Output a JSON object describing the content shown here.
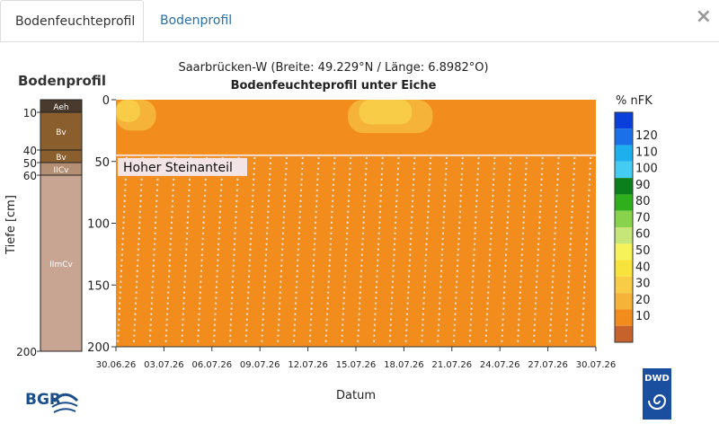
{
  "tabs": [
    {
      "label": "Bodenfeuchteprofil",
      "active": true
    },
    {
      "label": "Bodenprofil",
      "active": false
    }
  ],
  "close_label": "×",
  "profile": {
    "title": "Bodenprofil",
    "ylabel": "Tiefe [cm]",
    "ticks": [
      "10",
      "40",
      "50",
      "60",
      "200"
    ],
    "tick_depths": [
      10,
      40,
      50,
      60,
      200
    ],
    "layers": [
      {
        "name": "Aeh",
        "from": 0,
        "to": 10,
        "color": "#4a3a2e"
      },
      {
        "name": "Bv",
        "from": 10,
        "to": 40,
        "color": "#8b5e2e"
      },
      {
        "name": "Bv",
        "from": 40,
        "to": 50,
        "color": "#8b5e2e"
      },
      {
        "name": "IICv",
        "from": 50,
        "to": 60,
        "color": "#b58f73"
      },
      {
        "name": "IImCv",
        "from": 60,
        "to": 200,
        "color": "#c7a592"
      }
    ]
  },
  "chart_data": {
    "type": "heatmap",
    "title": "Saarbrücken-W (Breite: 49.229°N / Länge: 6.8982°O)",
    "subtitle": "Bodenfeuchteprofil unter Eiche",
    "xlabel": "Datum",
    "ylabel": "",
    "x_ticks": [
      "30.06.26",
      "03.07.26",
      "06.07.26",
      "09.07.26",
      "12.07.26",
      "15.07.26",
      "18.07.26",
      "21.07.26",
      "24.07.26",
      "27.07.26",
      "30.07.26"
    ],
    "x_range_days": [
      0,
      30
    ],
    "y_ticks": [
      0,
      50,
      100,
      150,
      200
    ],
    "ylim": [
      0,
      200
    ],
    "background_value_class": "10",
    "stone_zone": {
      "label": "Hoher Steinanteil",
      "from_depth": 45,
      "to_depth": 200
    },
    "patches": [
      {
        "day_from": 0,
        "day_to": 2.5,
        "depth_from": 0,
        "depth_to": 25,
        "class": "20"
      },
      {
        "day_from": 0,
        "day_to": 1.5,
        "depth_from": 0,
        "depth_to": 18,
        "class": "30"
      },
      {
        "day_from": 14.5,
        "day_to": 19.8,
        "depth_from": 0,
        "depth_to": 27,
        "class": "20"
      },
      {
        "day_from": 15.2,
        "day_to": 18.5,
        "depth_from": 0,
        "depth_to": 20,
        "class": "30"
      }
    ]
  },
  "legend": {
    "title": "% nFK",
    "classes": [
      {
        "label": "",
        "color": "#c8622d"
      },
      {
        "label": "10",
        "color": "#f28c1c"
      },
      {
        "label": "20",
        "color": "#f6b33a"
      },
      {
        "label": "30",
        "color": "#f8cc46"
      },
      {
        "label": "40",
        "color": "#f8e23c"
      },
      {
        "label": "50",
        "color": "#f5f25a"
      },
      {
        "label": "60",
        "color": "#c6e67a"
      },
      {
        "label": "70",
        "color": "#88d24c"
      },
      {
        "label": "80",
        "color": "#2faf1c"
      },
      {
        "label": "90",
        "color": "#0b7f1c"
      },
      {
        "label": "100",
        "color": "#45ccf2"
      },
      {
        "label": "110",
        "color": "#1eb0ee"
      },
      {
        "label": "120",
        "color": "#1a70e8"
      },
      {
        "label": "",
        "color": "#0a3fdc"
      }
    ]
  },
  "logos": {
    "bgr": "BGR",
    "dwd": "DWD"
  }
}
